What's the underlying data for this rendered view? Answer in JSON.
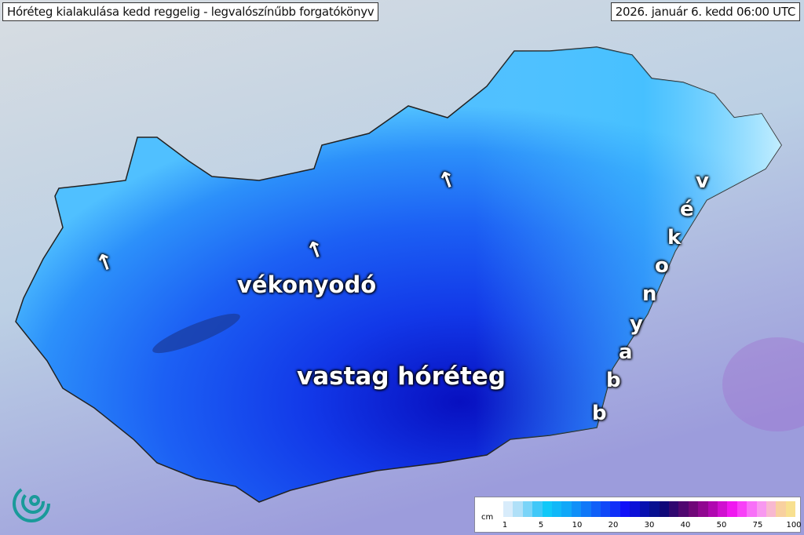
{
  "header": {
    "title": "Hóréteg kialakulása kedd reggelig - legvalószínűbb forgatókönyv",
    "valid_time": "2026. január 6. kedd 06:00 UTC"
  },
  "map": {
    "region": "Hungary",
    "annotations": {
      "thinning": "vékonyodó",
      "thick_snow": "vastag hóréteg",
      "thinner_vertical": [
        "v",
        "é",
        "k",
        "o",
        "n",
        "y",
        "a",
        "b",
        "b"
      ]
    },
    "arrow_icon": "arrow-up-icon",
    "colors": {
      "max": "#0810b8",
      "mid": "#1e50f0",
      "edge": "#40b8ff",
      "background": "#c6d4de"
    }
  },
  "legend": {
    "unit": "cm",
    "ticks": [
      "1",
      "5",
      "10",
      "20",
      "30",
      "40",
      "50",
      "75",
      "100"
    ],
    "colors": [
      "#d8ecfb",
      "#b0e0f8",
      "#7ad4f8",
      "#40c8f8",
      "#10c8f8",
      "#10b8f8",
      "#10a8f8",
      "#1090f8",
      "#1078f8",
      "#1060f8",
      "#1048f8",
      "#1030f8",
      "#1010f8",
      "#0c10d8",
      "#0810b0",
      "#081090",
      "#100878",
      "#300870",
      "#500870",
      "#700878",
      "#900890",
      "#b008b0",
      "#d010d0",
      "#f018f0",
      "#f840f8",
      "#f870f8",
      "#f898f0",
      "#f8b8d0",
      "#f8d0a0",
      "#f8e090"
    ]
  },
  "logo": "swirl-logo"
}
